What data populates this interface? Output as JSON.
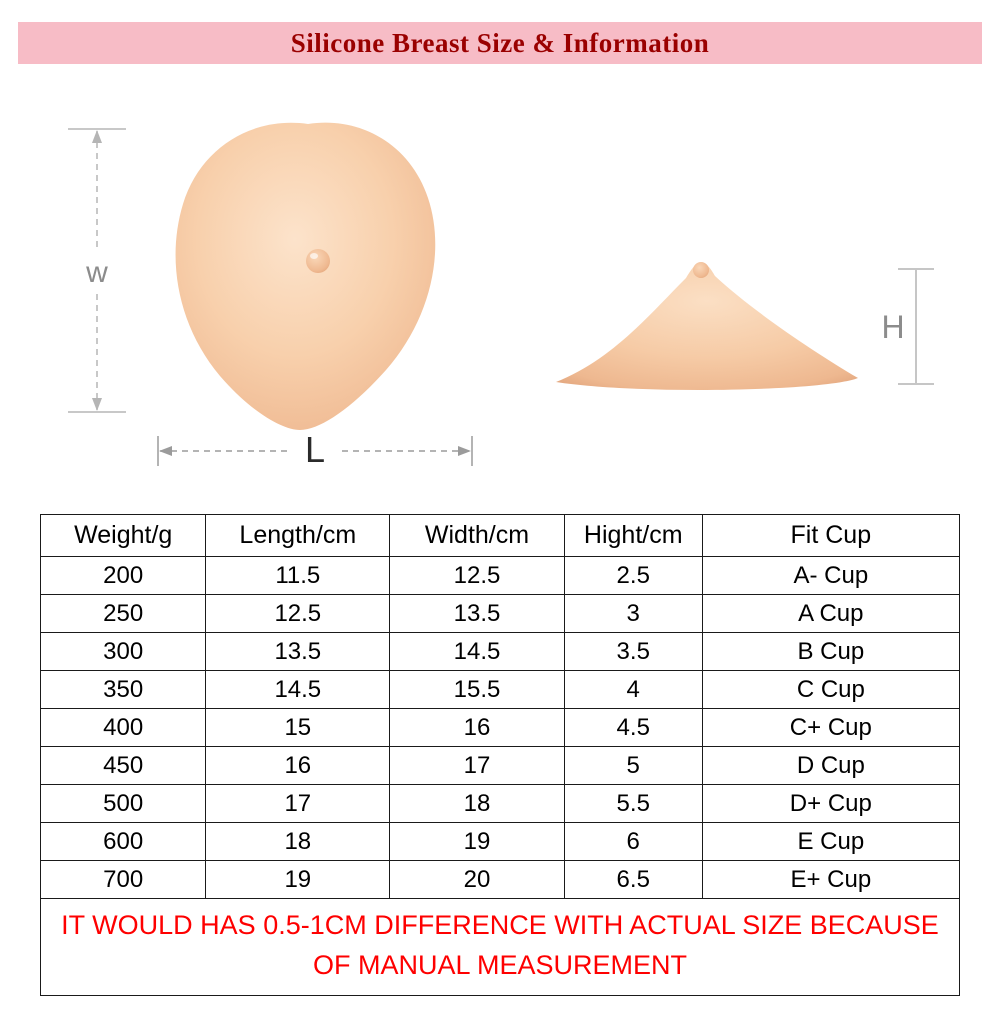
{
  "header": {
    "title": "Silicone Breast Size & Information",
    "bg_color": "#f7bcc6",
    "text_color": "#9a0000"
  },
  "figure": {
    "labels": {
      "width": "w",
      "length": "L",
      "height": "H"
    },
    "skin_color": "#f5c6a5"
  },
  "table": {
    "headers": [
      "Weight/g",
      "Length/cm",
      "Width/cm",
      "Hight/cm",
      "Fit Cup"
    ],
    "rows": [
      [
        "200",
        "11.5",
        "12.5",
        "2.5",
        "A- Cup"
      ],
      [
        "250",
        "12.5",
        "13.5",
        "3",
        "A Cup"
      ],
      [
        "300",
        "13.5",
        "14.5",
        "3.5",
        "B Cup"
      ],
      [
        "350",
        "14.5",
        "15.5",
        "4",
        "C Cup"
      ],
      [
        "400",
        "15",
        "16",
        "4.5",
        "C+ Cup"
      ],
      [
        "450",
        "16",
        "17",
        "5",
        "D Cup"
      ],
      [
        "500",
        "17",
        "18",
        "5.5",
        "D+ Cup"
      ],
      [
        "600",
        "18",
        "19",
        "6",
        "E Cup"
      ],
      [
        "700",
        "19",
        "20",
        "6.5",
        "E+ Cup"
      ]
    ]
  },
  "note": {
    "line1": "IT WOULD HAS 0.5-1CM DIFFERENCE WITH ACTUAL SIZE BECAUSE",
    "line2": "OF MANUAL MEASUREMENT",
    "color": "#fe0000"
  }
}
